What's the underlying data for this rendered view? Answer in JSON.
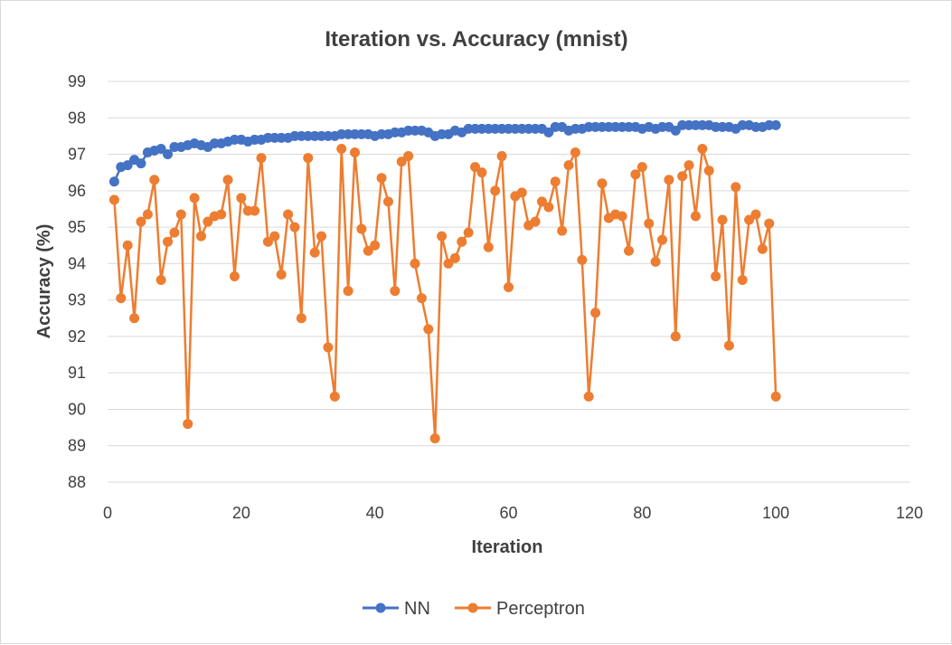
{
  "chart_data": {
    "type": "line",
    "title": "Iteration vs. Accuracy (mnist)",
    "xlabel": "Iteration",
    "ylabel": "Accuracy (%)",
    "xlim": [
      0,
      120
    ],
    "ylim": [
      88,
      99
    ],
    "x_ticks": [
      0,
      20,
      40,
      60,
      80,
      100,
      120
    ],
    "y_ticks": [
      88,
      89,
      90,
      91,
      92,
      93,
      94,
      95,
      96,
      97,
      98,
      99
    ],
    "grid": "horizontal major gridlines",
    "legend_position": "bottom",
    "series": [
      {
        "name": "NN",
        "color": "#4472c4",
        "x": [
          1,
          2,
          3,
          4,
          5,
          6,
          7,
          8,
          9,
          10,
          11,
          12,
          13,
          14,
          15,
          16,
          17,
          18,
          19,
          20,
          21,
          22,
          23,
          24,
          25,
          26,
          27,
          28,
          29,
          30,
          31,
          32,
          33,
          34,
          35,
          36,
          37,
          38,
          39,
          40,
          41,
          42,
          43,
          44,
          45,
          46,
          47,
          48,
          49,
          50,
          51,
          52,
          53,
          54,
          55,
          56,
          57,
          58,
          59,
          60,
          61,
          62,
          63,
          64,
          65,
          66,
          67,
          68,
          69,
          70,
          71,
          72,
          73,
          74,
          75,
          76,
          77,
          78,
          79,
          80,
          81,
          82,
          83,
          84,
          85,
          86,
          87,
          88,
          89,
          90,
          91,
          92,
          93,
          94,
          95,
          96,
          97,
          98,
          99,
          100
        ],
        "values": [
          96.25,
          96.65,
          96.7,
          96.85,
          96.75,
          97.05,
          97.1,
          97.15,
          97.0,
          97.2,
          97.2,
          97.25,
          97.3,
          97.25,
          97.2,
          97.3,
          97.3,
          97.35,
          97.4,
          97.4,
          97.35,
          97.4,
          97.4,
          97.45,
          97.45,
          97.45,
          97.45,
          97.5,
          97.5,
          97.5,
          97.5,
          97.5,
          97.5,
          97.5,
          97.55,
          97.55,
          97.55,
          97.55,
          97.55,
          97.5,
          97.55,
          97.55,
          97.6,
          97.6,
          97.65,
          97.65,
          97.65,
          97.6,
          97.5,
          97.55,
          97.55,
          97.65,
          97.6,
          97.7,
          97.7,
          97.7,
          97.7,
          97.7,
          97.7,
          97.7,
          97.7,
          97.7,
          97.7,
          97.7,
          97.7,
          97.6,
          97.75,
          97.75,
          97.65,
          97.7,
          97.7,
          97.75,
          97.75,
          97.75,
          97.75,
          97.75,
          97.75,
          97.75,
          97.75,
          97.7,
          97.75,
          97.7,
          97.75,
          97.75,
          97.65,
          97.8,
          97.8,
          97.8,
          97.8,
          97.8,
          97.75,
          97.75,
          97.75,
          97.7,
          97.8,
          97.8,
          97.75,
          97.75,
          97.8,
          97.8
        ]
      },
      {
        "name": "Perceptron",
        "color": "#ed7d31",
        "x": [
          1,
          2,
          3,
          4,
          5,
          6,
          7,
          8,
          9,
          10,
          11,
          12,
          13,
          14,
          15,
          16,
          17,
          18,
          19,
          20,
          21,
          22,
          23,
          24,
          25,
          26,
          27,
          28,
          29,
          30,
          31,
          32,
          33,
          34,
          35,
          36,
          37,
          38,
          39,
          40,
          41,
          42,
          43,
          44,
          45,
          46,
          47,
          48,
          49,
          50,
          51,
          52,
          53,
          54,
          55,
          56,
          57,
          58,
          59,
          60,
          61,
          62,
          63,
          64,
          65,
          66,
          67,
          68,
          69,
          70,
          71,
          72,
          73,
          74,
          75,
          76,
          77,
          78,
          79,
          80,
          81,
          82,
          83,
          84,
          85,
          86,
          87,
          88,
          89,
          90,
          91,
          92,
          93,
          94,
          95,
          96,
          97,
          98,
          99,
          100
        ],
        "values": [
          95.75,
          93.05,
          94.5,
          92.5,
          95.15,
          95.35,
          96.3,
          93.55,
          94.6,
          94.85,
          95.35,
          89.6,
          95.8,
          94.75,
          95.15,
          95.3,
          95.35,
          96.3,
          93.65,
          95.8,
          95.45,
          95.45,
          96.9,
          94.6,
          94.75,
          93.7,
          95.35,
          95.0,
          92.5,
          96.9,
          94.3,
          94.75,
          91.7,
          90.35,
          97.15,
          93.25,
          97.05,
          94.95,
          94.35,
          94.5,
          96.35,
          95.7,
          93.25,
          96.8,
          96.95,
          94.0,
          93.05,
          92.2,
          89.2,
          94.75,
          94.0,
          94.15,
          94.6,
          94.85,
          96.65,
          96.5,
          94.45,
          96.0,
          96.95,
          93.35,
          95.85,
          95.95,
          95.05,
          95.15,
          95.7,
          95.55,
          96.25,
          94.9,
          96.7,
          97.05,
          94.1,
          90.35,
          92.65,
          96.2,
          95.25,
          95.35,
          95.3,
          94.35,
          96.45,
          96.65,
          95.1,
          94.05,
          94.65,
          96.3,
          92.0,
          96.4,
          96.7,
          95.3,
          97.15,
          96.55,
          93.65,
          95.2,
          91.75,
          96.1,
          93.55,
          95.2,
          95.35,
          94.4,
          95.1,
          90.35
        ]
      }
    ]
  }
}
